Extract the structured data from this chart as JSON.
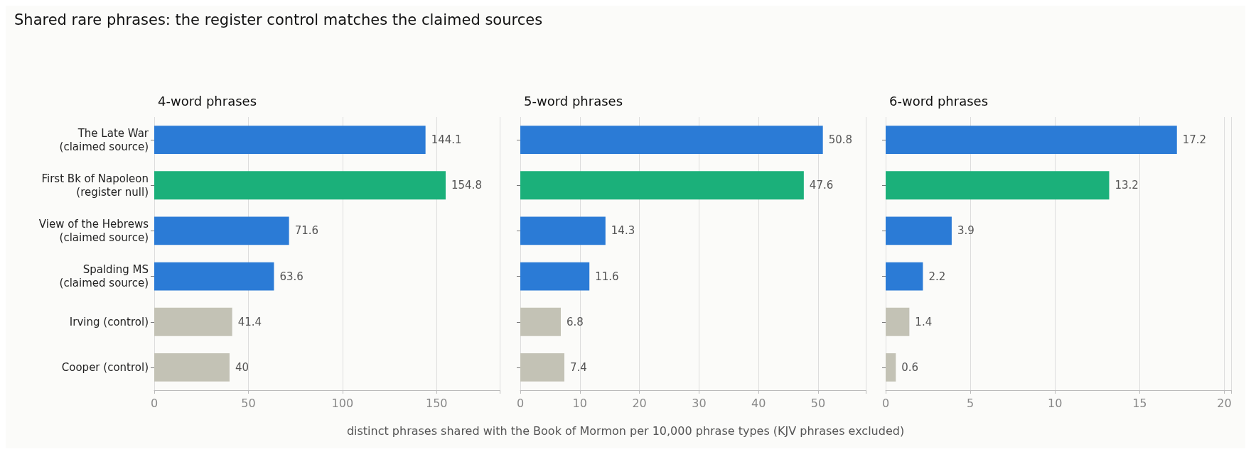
{
  "chart_data": [
    {
      "type": "bar",
      "orientation": "horizontal",
      "title": "4-word phrases",
      "annotations": [
        "Shared rare phrases: the register control matches the claimed sources"
      ],
      "categories": [
        "The Late War\n(claimed source)",
        "First Bk of Napoleon\n(register null)",
        "View of the Hebrews\n(claimed source)",
        "Spalding MS\n(claimed source)",
        "Irving (control)",
        "Cooper (control)"
      ],
      "values": [
        144.1,
        154.8,
        71.6,
        63.6,
        41.4,
        40
      ],
      "colors": [
        "#2b7bd6",
        "#1bb07a",
        "#2b7bd6",
        "#2b7bd6",
        "#c3c2b5",
        "#c3c2b5"
      ],
      "xlim": [
        0,
        183.5
      ],
      "xticks": [
        0,
        50,
        100,
        150
      ],
      "grid": "x",
      "data_labels": true
    },
    {
      "type": "bar",
      "orientation": "horizontal",
      "title": "5-word phrases",
      "xlabel": "distinct phrases shared with the Book of Mormon per 10,000 phrase types (KJV phrases excluded)",
      "categories": [
        null,
        null,
        null,
        null,
        null,
        null
      ],
      "values": [
        50.8,
        47.6,
        14.3,
        11.6,
        6.8,
        7.4
      ],
      "colors": [
        "#2b7bd6",
        "#1bb07a",
        "#2b7bd6",
        "#2b7bd6",
        "#c3c2b5",
        "#c3c2b5"
      ],
      "xlim": [
        0,
        58
      ],
      "xticks": [
        0,
        10,
        20,
        30,
        40,
        50
      ],
      "grid": "x",
      "data_labels": true,
      "tick_labels": "x"
    },
    {
      "type": "bar",
      "orientation": "horizontal",
      "title": "6-word phrases",
      "categories": [
        null,
        null,
        null,
        null,
        null,
        null
      ],
      "values": [
        17.2,
        13.2,
        3.9,
        2.2,
        1.4,
        0.6
      ],
      "colors": [
        "#2b7bd6",
        "#1bb07a",
        "#2b7bd6",
        "#2b7bd6",
        "#c3c2b5",
        "#c3c2b5"
      ],
      "xlim": [
        0,
        20.4
      ],
      "xticks": [
        0,
        5,
        10,
        15,
        20
      ],
      "grid": "x",
      "data_labels": true,
      "tick_labels": "x"
    }
  ]
}
